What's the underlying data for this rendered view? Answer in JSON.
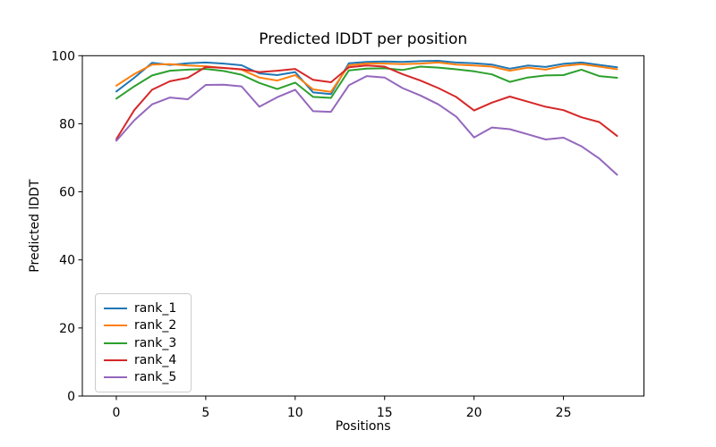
{
  "figure": {
    "background": "#ffffff",
    "text_color": "#000000",
    "spine_color": "#000000"
  },
  "chart_data": {
    "type": "line",
    "title": "Predicted lDDT per position",
    "xlabel": "Positions",
    "ylabel": "Predicted lDDT",
    "xlim": [
      -1.9,
      29.5
    ],
    "ylim": [
      0,
      100
    ],
    "xticks": [
      0,
      5,
      10,
      15,
      20,
      25
    ],
    "yticks": [
      0,
      20,
      40,
      60,
      80,
      100
    ],
    "grid": false,
    "legend_position": "lower left",
    "x": [
      0,
      1,
      2,
      3,
      4,
      5,
      6,
      7,
      8,
      9,
      10,
      11,
      12,
      13,
      14,
      15,
      16,
      17,
      18,
      19,
      20,
      21,
      22,
      23,
      24,
      25,
      26,
      27,
      28
    ],
    "series": [
      {
        "name": "rank_1",
        "color": "#1f77b4",
        "values": [
          89.5,
          93.5,
          97.9,
          97.3,
          97.8,
          98.0,
          97.7,
          97.2,
          94.8,
          94.3,
          95.2,
          89.2,
          88.7,
          97.8,
          98.2,
          98.3,
          98.2,
          98.4,
          98.5,
          98.0,
          97.8,
          97.4,
          96.2,
          97.1,
          96.7,
          97.6,
          98.0,
          97.3,
          96.6
        ]
      },
      {
        "name": "rank_2",
        "color": "#ff7f0e",
        "values": [
          91.2,
          94.6,
          97.4,
          97.5,
          97.1,
          96.9,
          96.4,
          95.9,
          93.6,
          92.7,
          94.3,
          90.1,
          89.4,
          97.2,
          97.7,
          97.7,
          97.5,
          97.7,
          98.0,
          97.4,
          97.1,
          96.8,
          95.6,
          96.5,
          95.9,
          97.0,
          97.5,
          96.8,
          96.0
        ]
      },
      {
        "name": "rank_3",
        "color": "#2ca02c",
        "values": [
          87.4,
          91.0,
          94.2,
          95.6,
          95.9,
          96.1,
          95.5,
          94.4,
          92.0,
          90.2,
          92.1,
          87.9,
          87.6,
          95.7,
          96.2,
          96.3,
          95.8,
          96.8,
          96.5,
          96.0,
          95.4,
          94.5,
          92.3,
          93.6,
          94.2,
          94.3,
          95.9,
          94.0,
          93.5
        ]
      },
      {
        "name": "rank_4",
        "color": "#d62728",
        "values": [
          75.5,
          84.0,
          90.0,
          92.5,
          93.5,
          96.7,
          96.4,
          96.0,
          95.2,
          95.6,
          96.1,
          92.9,
          92.2,
          96.6,
          97.1,
          96.8,
          94.6,
          92.7,
          90.5,
          87.9,
          83.9,
          86.2,
          88.0,
          86.5,
          85.0,
          84.0,
          81.9,
          80.5,
          76.4
        ]
      },
      {
        "name": "rank_5",
        "color": "#9467bd",
        "values": [
          75.0,
          81.0,
          85.7,
          87.7,
          87.2,
          91.4,
          91.5,
          91.0,
          85.0,
          87.8,
          90.0,
          83.7,
          83.5,
          91.3,
          94.0,
          93.6,
          90.5,
          88.3,
          85.7,
          82.1,
          76.0,
          78.9,
          78.4,
          76.9,
          75.4,
          75.9,
          73.4,
          69.8,
          65.0
        ]
      }
    ]
  }
}
